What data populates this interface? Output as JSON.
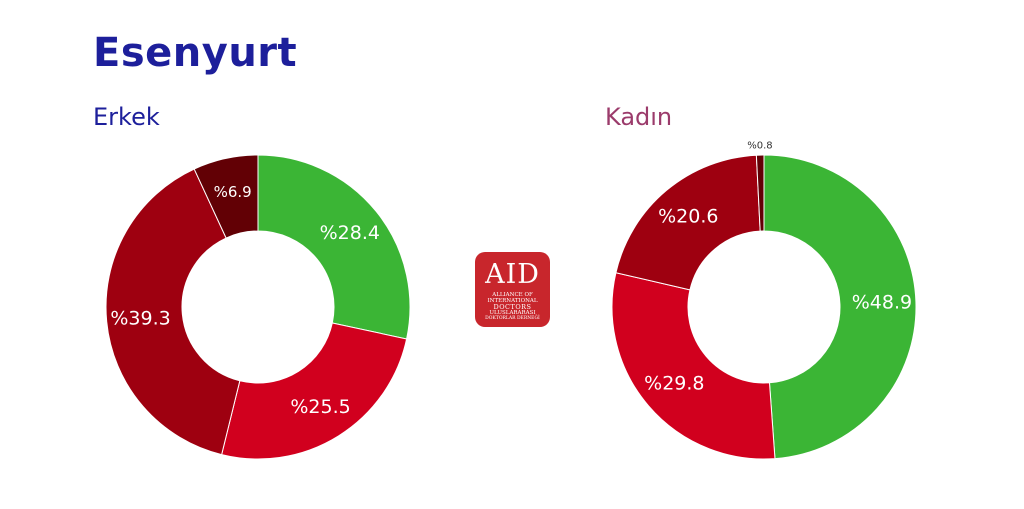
{
  "title": "Esenyurt",
  "logo": {
    "text": "AID",
    "lines": [
      "ALLIANCE OF",
      "INTERNATIONAL",
      "DOCTORS",
      "ULUSLARARASI",
      "DOKTORLAR DERNEĞİ"
    ],
    "color": "#c8262c"
  },
  "chart_data": [
    {
      "type": "pie",
      "donut": true,
      "title": "Erkek",
      "label_prefix": "%",
      "slices": [
        {
          "value": 28.4,
          "label": "%28.4",
          "color": "#3bb535"
        },
        {
          "value": 25.5,
          "label": "%25.5",
          "color": "#d1001e"
        },
        {
          "value": 39.3,
          "label": "%39.3",
          "color": "#9e0010"
        },
        {
          "value": 6.9,
          "label": "%6.9",
          "color": "#620005"
        }
      ]
    },
    {
      "type": "pie",
      "donut": true,
      "title": "Kadın",
      "label_prefix": "%",
      "slices": [
        {
          "value": 48.9,
          "label": "%48.9",
          "color": "#3bb535"
        },
        {
          "value": 29.8,
          "label": "%29.8",
          "color": "#d1001e"
        },
        {
          "value": 20.6,
          "label": "%20.6",
          "color": "#9e0010"
        },
        {
          "value": 0.8,
          "label": "%0.8",
          "color": "#620005"
        }
      ]
    }
  ]
}
